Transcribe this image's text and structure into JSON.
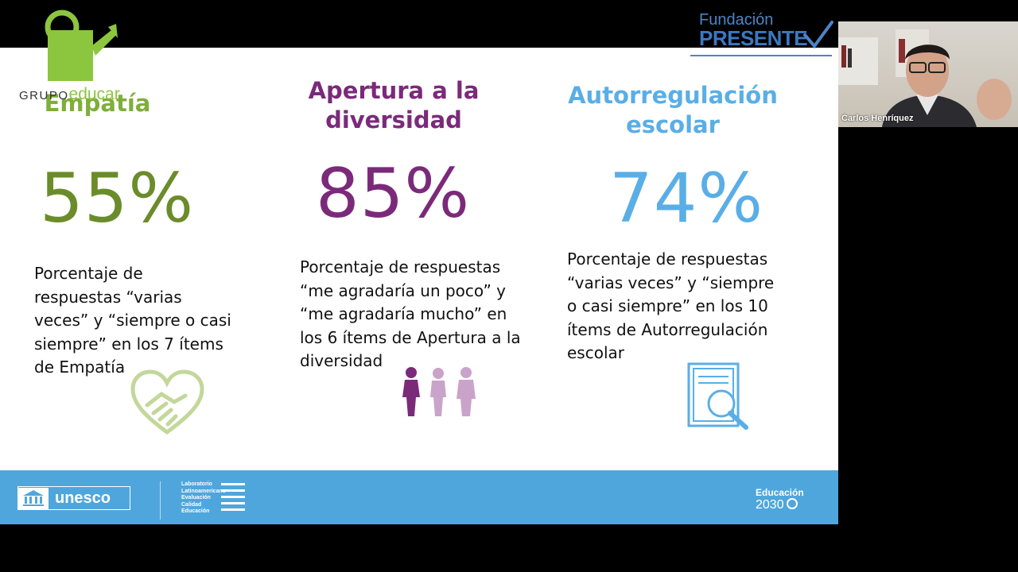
{
  "brand": {
    "grupo_educar_prefix": "GRUPO",
    "grupo_educar_accent": "educar",
    "fundacion_line1": "Fundación",
    "fundacion_line2": "PRESENTE"
  },
  "columns": [
    {
      "title": "Empatía",
      "percentage": "55%",
      "description": [
        "Porcentaje de",
        "respuestas “varias",
        "veces” y “siempre o casi",
        "siempre” en los 7 ítems",
        "de Empatía"
      ],
      "color": "#6b8c2a",
      "title_color": "#7fae3a",
      "icon": "heart-handshake-icon"
    },
    {
      "title": "Apertura a la diversidad",
      "title_lines": [
        "Apertura a la",
        "diversidad"
      ],
      "percentage": "85%",
      "description": [
        "Porcentaje de respuestas",
        "“me agradaría un poco” y",
        "“me agradaría mucho” en",
        "los 6 ítems de Apertura a la",
        "diversidad"
      ],
      "color": "#7b2a7a",
      "icon": "people-icon"
    },
    {
      "title": "Autorregulación escolar",
      "title_lines": [
        "Autorregulación",
        "escolar"
      ],
      "percentage": "74%",
      "description": [
        "Porcentaje de respuestas",
        "“varias veces” y “siempre",
        "o casi siempre” en los 10",
        "ítems de Autorregulación",
        "escolar"
      ],
      "color": "#5aaee6",
      "icon": "book-search-icon"
    }
  ],
  "footer": {
    "unesco": "unesco",
    "llece_lines": [
      "Laboratorio",
      "Latinoamericano",
      "Evaluación",
      "Calidad",
      "Educación"
    ],
    "education_line1": "Educación",
    "education_line2": "2030"
  },
  "participant": {
    "name": "Carlos Henríquez"
  }
}
